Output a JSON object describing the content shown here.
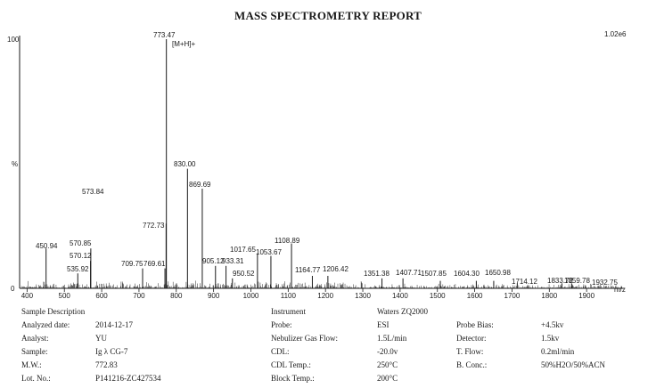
{
  "report_title": "MASS SPECTROMETRY REPORT",
  "chart_data": {
    "type": "line",
    "title": "MASS SPECTROMETRY REPORT",
    "xlabel": "m/z",
    "ylabel": "%",
    "xlim": [
      380,
      2000
    ],
    "ylim": [
      0,
      100
    ],
    "x_ticks": [
      400,
      500,
      600,
      700,
      800,
      900,
      1000,
      1100,
      1200,
      1300,
      1400,
      1500,
      1600,
      1700,
      1800,
      1900
    ],
    "y_tick_labels": {
      "top": "100",
      "bottom": "0"
    },
    "intensity_scale": "1.02e6",
    "peaks": [
      {
        "mz": 773.47,
        "intensity": 100,
        "label": "773.47",
        "annotation": "[M+H]+"
      },
      {
        "mz": 830.0,
        "intensity": 48,
        "label": "830.00"
      },
      {
        "mz": 869.69,
        "intensity": 40,
        "label": "869.69"
      },
      {
        "mz": 772.73,
        "intensity": 26,
        "label": "772.73"
      },
      {
        "mz": 450.94,
        "intensity": 16,
        "label": "450.94"
      },
      {
        "mz": 570.85,
        "intensity": 16,
        "label": "570.85"
      },
      {
        "mz": 570.12,
        "intensity": 11,
        "label": "570.12"
      },
      {
        "mz": 535.92,
        "intensity": 6,
        "label": "535.92"
      },
      {
        "mz": 709.75,
        "intensity": 8,
        "label": "709.75"
      },
      {
        "mz": 769.61,
        "intensity": 8,
        "label": "769.61"
      },
      {
        "mz": 905.12,
        "intensity": 9,
        "label": "905.12"
      },
      {
        "mz": 933.31,
        "intensity": 9,
        "label": "933.31"
      },
      {
        "mz": 950.52,
        "intensity": 4,
        "label": "950.52"
      },
      {
        "mz": 1017.65,
        "intensity": 14,
        "label": "1017.65"
      },
      {
        "mz": 1053.67,
        "intensity": 13,
        "label": "1053.67"
      },
      {
        "mz": 1108.89,
        "intensity": 18,
        "label": "1108.89"
      },
      {
        "mz": 1164.77,
        "intensity": 5,
        "label": "1164.77"
      },
      {
        "mz": 1206.42,
        "intensity": 5,
        "label": "1206.42"
      },
      {
        "mz": 1351.38,
        "intensity": 4,
        "label": "1351.38"
      },
      {
        "mz": 1407.71,
        "intensity": 4,
        "label": "1407.71"
      },
      {
        "mz": 1507.85,
        "intensity": 3,
        "label": "1507.85"
      },
      {
        "mz": 1604.3,
        "intensity": 3,
        "label": "1604.30"
      },
      {
        "mz": 1650.98,
        "intensity": 3,
        "label": "1650.98"
      },
      {
        "mz": 1714.12,
        "intensity": 2,
        "label": "1714.12"
      },
      {
        "mz": 1833.72,
        "intensity": 2,
        "label": "1833.72"
      },
      {
        "mz": 1859.78,
        "intensity": 2,
        "label": "1859.78"
      },
      {
        "mz": 1932.75,
        "intensity": 1,
        "label": "1932.75"
      }
    ],
    "extra_peaks": [
      {
        "mz": 573.84,
        "label": "573.84"
      }
    ],
    "grid": false
  },
  "sample": {
    "section_title": "Sample Description",
    "labels": [
      "Analyzed date:",
      "Analyst:",
      "Sample:",
      "M.W.:",
      "Lot. No.:"
    ],
    "values": [
      "2014-12-17",
      "YU",
      "Ig λ CG-7",
      "772.83",
      "P141216-ZC427534"
    ]
  },
  "instrument": {
    "section_title": "Instrument",
    "model": "Waters ZQ2000",
    "labels": [
      "Probe:",
      "Nebulizer Gas Flow:",
      "CDL:",
      "CDL Temp.:",
      "Block Temp.:"
    ],
    "values": [
      "ESI",
      "1.5L/min",
      "-20.0v",
      "250°C",
      "200°C"
    ],
    "labels2": [
      "Probe Bias:",
      "Detector:",
      "T. Flow:",
      "B. Conc.:"
    ],
    "values2": [
      "+4.5kv",
      "1.5kv",
      "0.2ml/min",
      "50%H2O/50%ACN"
    ]
  }
}
